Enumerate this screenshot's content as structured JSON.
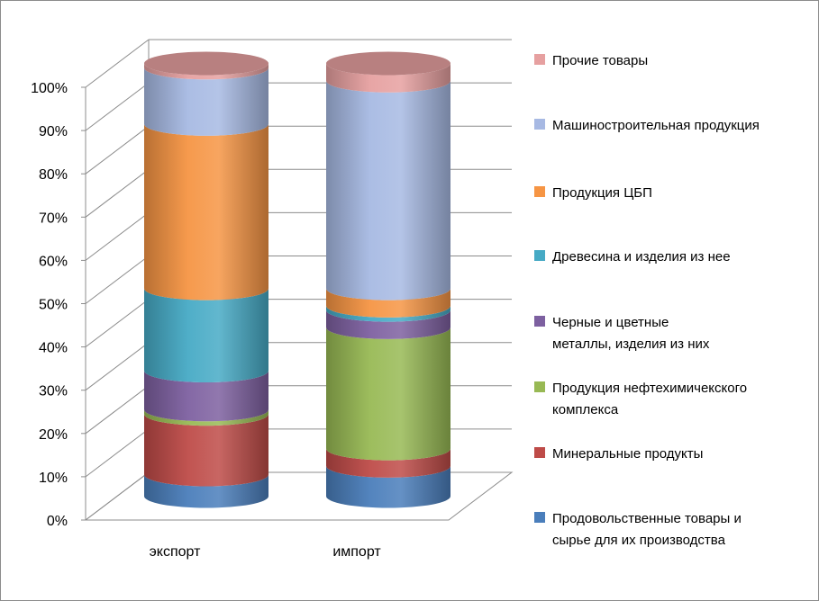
{
  "chart_data": {
    "type": "bar",
    "stacked": true,
    "percent_stacked": true,
    "style": "3d-cylinder",
    "categories": [
      "экспорт",
      "импорт"
    ],
    "y_ticks": [
      "0%",
      "10%",
      "20%",
      "30%",
      "40%",
      "50%",
      "60%",
      "70%",
      "80%",
      "90%",
      "100%"
    ],
    "ylim": [
      0,
      100
    ],
    "grid": true,
    "legend_position": "right",
    "series": [
      {
        "name": "Продовольственные товары и сырье для их производства",
        "color": "#4a7ebb",
        "values": [
          5,
          7
        ]
      },
      {
        "name": "Минеральные продукты",
        "color": "#be4b48",
        "values": [
          14,
          4
        ]
      },
      {
        "name": "Продукция нефтехимичекского комплекса",
        "color": "#98b954",
        "values": [
          1,
          28
        ]
      },
      {
        "name": "Черные и цветные металлы, изделия из них",
        "color": "#7d60a0",
        "values": [
          9,
          4
        ]
      },
      {
        "name": "Древесина и изделия из нее",
        "color": "#46aac5",
        "values": [
          19,
          1
        ]
      },
      {
        "name": "Продукция ЦБП",
        "color": "#f69544",
        "values": [
          38,
          4
        ]
      },
      {
        "name": "Машиностроительная продукция",
        "color": "#a7b9e3",
        "values": [
          13,
          48
        ]
      },
      {
        "name": "Прочие товары",
        "color": "#e6a0a0",
        "values": [
          1,
          4
        ]
      }
    ],
    "legend_lines": [
      [
        "Прочие товары"
      ],
      [
        "Машиностроительная продукция"
      ],
      [
        "Продукция ЦБП"
      ],
      [
        "Древесина и изделия из нее"
      ],
      [
        "Черные и цветные",
        "металлы, изделия из них"
      ],
      [
        "Продукция нефтехимичекского",
        "комплекса"
      ],
      [
        "Минеральные продукты"
      ],
      [
        "Продовольственные товары и",
        "сырье для их производства"
      ]
    ]
  }
}
